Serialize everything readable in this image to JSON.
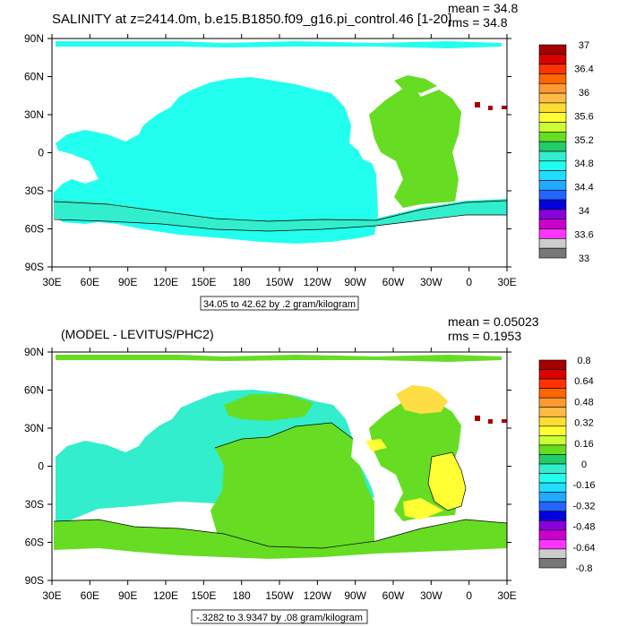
{
  "chart_data": [
    {
      "type": "heatmap",
      "title": "SALINITY at z=2414.0m, b.e15.B1850.f09_g16.pi_control.46 [1-20]",
      "stats": {
        "mean": "mean = 34.8",
        "rms": "rms = 34.8"
      },
      "range_label": "34.05 to 42.62 by .2 gram/kilogram",
      "x_ticks": [
        "30E",
        "60E",
        "90E",
        "120E",
        "150E",
        "180",
        "150W",
        "120W",
        "90W",
        "60W",
        "30W",
        "0",
        "30E"
      ],
      "y_ticks": [
        "90N",
        "60N",
        "30N",
        "0",
        "30S",
        "60S",
        "90S"
      ],
      "colorbar": {
        "labels": [
          "37",
          "36.4",
          "36",
          "35.6",
          "35.2",
          "34.8",
          "34.4",
          "34",
          "33.6",
          "33"
        ],
        "colors": [
          "#a50000",
          "#dc0000",
          "#ff3300",
          "#ff6600",
          "#ff9933",
          "#ffbb44",
          "#ffdd33",
          "#ffff33",
          "#ccff33",
          "#66dd22",
          "#22cc66",
          "#33eecc",
          "#22ffee",
          "#22ddff",
          "#22aaff",
          "#2266ff",
          "#0000dd",
          "#8800dd",
          "#cc00cc",
          "#ff33ff",
          "#cccccc",
          "#777777"
        ]
      },
      "fields": {
        "ocean_mean_color": "#22ffee",
        "atlantic_color": "#66dd22",
        "southern_color": "#33eecc"
      }
    },
    {
      "type": "heatmap",
      "title": "(MODEL - LEVITUS/PHC2)",
      "stats": {
        "mean": "mean = 0.05023",
        "rms": "rms = 0.1953"
      },
      "range_label": "-.3282 to 3.9347 by .08 gram/kilogram",
      "x_ticks": [
        "30E",
        "60E",
        "90E",
        "120E",
        "150E",
        "180",
        "150W",
        "120W",
        "90W",
        "60W",
        "30W",
        "0",
        "30E"
      ],
      "y_ticks": [
        "90N",
        "60N",
        "30N",
        "0",
        "30S",
        "60S",
        "90S"
      ],
      "colorbar": {
        "labels": [
          "0.8",
          "0.64",
          "0.48",
          "0.32",
          "0.16",
          "0",
          "-0.16",
          "-0.32",
          "-0.48",
          "-0.64",
          "-0.8"
        ],
        "colors": [
          "#a50000",
          "#dc0000",
          "#ff3300",
          "#ff6600",
          "#ff9933",
          "#ffbb44",
          "#ffdd33",
          "#ffff33",
          "#ccff33",
          "#66dd22",
          "#22cc66",
          "#33eecc",
          "#22ffee",
          "#22ddff",
          "#22aaff",
          "#2266ff",
          "#0000dd",
          "#8800dd",
          "#cc00cc",
          "#ff33ff",
          "#cccccc",
          "#777777"
        ]
      },
      "fields": {
        "pacific_color": "#33eecc",
        "green_color": "#66dd22",
        "yellow_color": "#ffff33",
        "gold_color": "#ffdd44"
      }
    }
  ]
}
